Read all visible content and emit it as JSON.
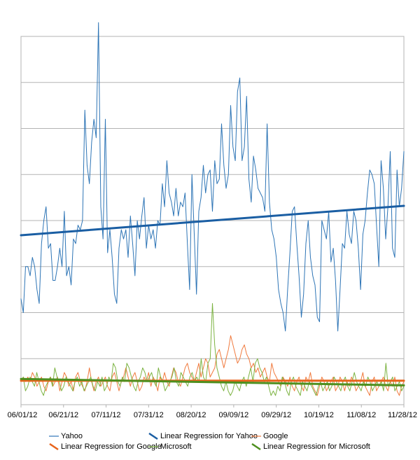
{
  "chart_data": {
    "type": "line",
    "title": "",
    "xlabel": "",
    "ylabel": "",
    "x_tick_labels": [
      "06/01/12",
      "06/21/12",
      "07/11/12",
      "07/31/12",
      "08/20/12",
      "09/09/12",
      "09/29/12",
      "10/19/12",
      "11/08/12",
      "11/28/12"
    ],
    "x_range_days": [
      0,
      180
    ],
    "y_tick_labels": [],
    "ylim": [
      0,
      8
    ],
    "grid": "horizontal",
    "legend_position": "bottom",
    "series": [
      {
        "name": "Yahoo",
        "color": "#2e75b6",
        "values": [
          2.3,
          2.0,
          3.0,
          3.0,
          2.8,
          3.2,
          3.0,
          2.5,
          2.2,
          3.5,
          4.0,
          4.3,
          3.4,
          3.5,
          2.7,
          2.7,
          3.0,
          3.4,
          3.0,
          4.2,
          2.8,
          3.0,
          2.6,
          3.6,
          3.5,
          3.9,
          3.8,
          4.0,
          6.4,
          5.2,
          4.8,
          5.7,
          6.2,
          5.8,
          8.3,
          4.3,
          3.6,
          6.2,
          3.3,
          3.8,
          3.2,
          2.4,
          2.2,
          3.4,
          3.8,
          3.6,
          3.8,
          3.2,
          4.1,
          3.5,
          2.8,
          4.0,
          3.6,
          4.1,
          4.5,
          3.4,
          3.9,
          3.6,
          3.8,
          3.4,
          4.0,
          3.9,
          4.8,
          4.3,
          5.3,
          4.6,
          4.4,
          4.1,
          4.7,
          4.1,
          4.4,
          4.3,
          4.6,
          3.5,
          2.5,
          5.0,
          3.7,
          2.4,
          4.2,
          4.5,
          5.2,
          4.6,
          5.0,
          5.1,
          4.2,
          5.3,
          4.8,
          4.9,
          6.1,
          5.2,
          4.7,
          5.0,
          6.5,
          5.6,
          5.3,
          6.8,
          7.1,
          5.3,
          5.6,
          6.7,
          4.9,
          4.4,
          5.4,
          5.1,
          4.7,
          4.6,
          4.5,
          4.2,
          6.1,
          4.4,
          3.8,
          3.6,
          3.2,
          2.5,
          2.2,
          2.0,
          1.6,
          2.5,
          3.3,
          4.2,
          4.3,
          3.5,
          2.8,
          1.9,
          2.4,
          3.5,
          4.0,
          3.2,
          2.8,
          2.6,
          1.9,
          1.8,
          4.0,
          3.8,
          3.6,
          4.2,
          3.1,
          3.4,
          2.7,
          1.6,
          2.5,
          3.5,
          3.4,
          4.2,
          3.7,
          3.5,
          4.2,
          4.0,
          3.4,
          2.5,
          3.7,
          4.0,
          4.6,
          5.1,
          5.0,
          4.8,
          3.9,
          3.0,
          5.3,
          4.7,
          3.6,
          4.3,
          5.5,
          3.4,
          3.2,
          5.1,
          4.3,
          4.7,
          5.5
        ]
      },
      {
        "name": "Linear Regression for Yahoo",
        "color": "#1a5ea3",
        "values": [
          3.68,
          4.32
        ]
      },
      {
        "name": "Google",
        "color": "#f07a3e",
        "values": [
          0.5,
          0.6,
          0.5,
          0.6,
          0.5,
          0.7,
          0.6,
          0.4,
          0.5,
          0.6,
          0.4,
          0.3,
          0.5,
          0.6,
          0.4,
          0.5,
          0.6,
          0.3,
          0.5,
          0.7,
          0.6,
          0.4,
          0.5,
          0.3,
          0.6,
          0.7,
          0.5,
          0.4,
          0.3,
          0.5,
          0.8,
          0.5,
          0.3,
          0.5,
          0.6,
          0.4,
          0.5,
          0.6,
          0.4,
          0.3,
          0.6,
          0.7,
          0.5,
          0.3,
          0.5,
          0.6,
          0.8,
          0.6,
          0.4,
          0.6,
          0.7,
          0.5,
          0.3,
          0.4,
          0.6,
          0.5,
          0.7,
          0.4,
          0.6,
          0.5,
          0.3,
          0.6,
          0.5,
          0.7,
          0.5,
          0.4,
          0.6,
          0.8,
          0.7,
          0.5,
          0.4,
          0.6,
          0.8,
          0.9,
          0.7,
          0.6,
          0.5,
          0.7,
          0.9,
          0.6,
          0.8,
          1.0,
          0.9,
          0.6,
          0.7,
          0.8,
          1.1,
          1.2,
          1.0,
          0.8,
          1.0,
          1.2,
          1.5,
          1.3,
          1.1,
          0.9,
          1.0,
          1.2,
          1.3,
          1.1,
          1.0,
          0.8,
          0.9,
          0.7,
          0.8,
          0.6,
          0.7,
          0.8,
          0.6,
          0.5,
          0.9,
          0.7,
          0.6,
          0.5,
          0.4,
          0.6,
          0.5,
          0.4,
          0.6,
          0.4,
          0.3,
          0.5,
          0.6,
          0.4,
          0.3,
          0.6,
          0.5,
          0.7,
          0.4,
          0.3,
          0.2,
          0.4,
          0.6,
          0.5,
          0.3,
          0.4,
          0.5,
          0.6,
          0.3,
          0.4,
          0.6,
          0.5,
          0.3,
          0.5,
          0.4,
          0.6,
          0.5,
          0.3,
          0.4,
          0.5,
          0.7,
          0.4,
          0.3,
          0.2,
          0.5,
          0.6,
          0.3,
          0.4,
          0.5,
          0.6,
          0.4,
          0.3,
          0.5,
          0.4,
          0.6,
          0.3,
          0.2,
          0.4,
          0.5
        ]
      },
      {
        "name": "Linear Regression for Google",
        "color": "#e8641c",
        "values": [
          0.52,
          0.52
        ]
      },
      {
        "name": "Microsoft",
        "color": "#7cb342",
        "values": [
          0.5,
          0.6,
          0.3,
          0.4,
          0.6,
          0.5,
          0.4,
          0.7,
          0.5,
          0.3,
          0.2,
          0.4,
          0.5,
          0.6,
          0.4,
          0.8,
          0.6,
          0.5,
          0.3,
          0.4,
          0.6,
          0.5,
          0.4,
          0.3,
          0.5,
          0.6,
          0.4,
          0.5,
          0.3,
          0.4,
          0.5,
          0.6,
          0.4,
          0.3,
          0.5,
          0.4,
          0.6,
          0.3,
          0.4,
          0.6,
          0.5,
          0.9,
          0.8,
          0.5,
          0.4,
          0.6,
          0.5,
          0.9,
          0.8,
          0.6,
          0.4,
          0.3,
          0.5,
          0.6,
          0.8,
          0.7,
          0.5,
          0.6,
          0.7,
          0.5,
          0.4,
          0.8,
          0.6,
          0.5,
          0.3,
          0.4,
          0.5,
          0.6,
          0.8,
          0.5,
          0.4,
          0.7,
          0.6,
          0.5,
          0.4,
          0.6,
          0.7,
          0.5,
          0.6,
          0.5,
          1.0,
          0.6,
          0.5,
          0.9,
          1.0,
          2.2,
          1.3,
          0.8,
          0.6,
          0.4,
          0.3,
          0.5,
          0.3,
          0.2,
          0.3,
          0.5,
          0.4,
          0.3,
          0.5,
          0.6,
          0.4,
          0.6,
          0.8,
          0.5,
          0.9,
          1.0,
          0.8,
          0.7,
          0.5,
          0.6,
          0.4,
          0.2,
          0.3,
          0.2,
          0.4,
          0.3,
          0.6,
          0.5,
          0.3,
          0.2,
          0.5,
          0.6,
          0.4,
          0.3,
          0.2,
          0.5,
          0.4,
          0.3,
          0.5,
          0.4,
          0.3,
          0.2,
          0.4,
          0.5,
          0.3,
          0.4,
          0.5,
          0.3,
          0.4,
          0.6,
          0.5,
          0.4,
          0.3,
          0.5,
          0.6,
          0.4,
          0.3,
          0.5,
          0.7,
          0.5,
          0.4,
          0.3,
          0.5,
          0.4,
          0.6,
          0.5,
          0.3,
          0.4,
          0.5,
          0.4,
          0.5,
          0.3,
          0.9,
          0.4,
          0.5,
          0.6,
          0.3,
          0.4,
          0.5,
          0.3,
          0.4
        ]
      },
      {
        "name": "Linear Regression for Microsoft",
        "color": "#4e8f1f",
        "values": [
          0.56,
          0.42
        ]
      }
    ]
  }
}
